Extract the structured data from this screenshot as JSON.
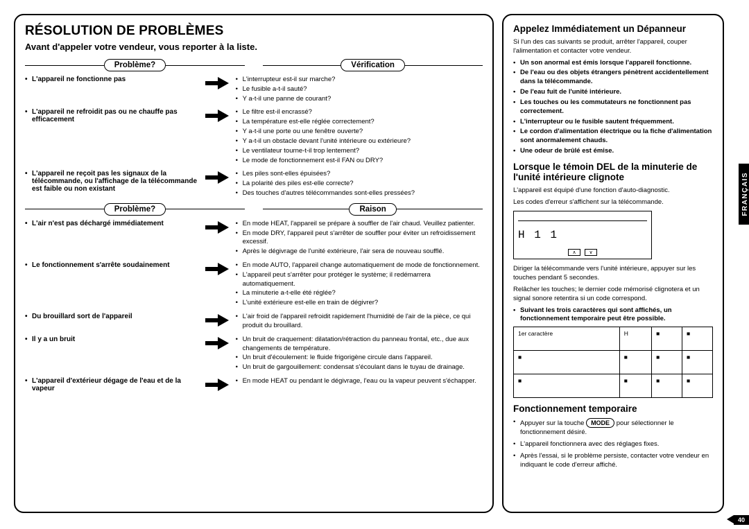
{
  "page": {
    "number": "40",
    "language_tab": "FRANÇAIS"
  },
  "main": {
    "title": "RÉSOLUTION DE PROBLÈMES",
    "subtitle": "Avant d'appeler votre vendeur, vous reporter à la liste.",
    "header1_left": "Problème?",
    "header1_right": "Vérification",
    "section1": [
      {
        "problem": "L'appareil ne fonctionne pas",
        "checks": [
          "L'interrupteur est-il sur marche?",
          "Le fusible a-t-il sauté?",
          "Y a-t-il une panne de courant?"
        ]
      },
      {
        "problem": "L'appareil ne refroidit pas ou ne chauffe pas efficacement",
        "checks": [
          "Le filtre est-il encrassé?",
          "La température est-elle réglée correctement?",
          "Y a-t-il une porte ou une fenêtre ouverte?",
          "Y a-t-il un obstacle devant l'unité intérieure ou extérieure?",
          "Le ventilateur tourne-t-il trop lentement?",
          "Le mode de fonctionnement est-il FAN ou DRY?"
        ]
      },
      {
        "problem": "L'appareil ne reçoit pas les signaux de la télécommande, ou l'affichage de la télécommande est faible ou non existant",
        "checks": [
          "Les piles sont-elles épuisées?",
          "La polarité des piles est-elle correcte?",
          "Des touches d'autres télécommandes sont-elles pressées?"
        ]
      }
    ],
    "header2_left": "Problème?",
    "header2_right": "Raison",
    "section2": [
      {
        "problem": "L'air n'est pas déchargé immédiatement",
        "checks": [
          "En mode HEAT, l'appareil se prépare à souffler de l'air chaud. Veuillez patienter.",
          "En mode DRY, l'appareil peut s'arrêter de souffler pour éviter un refroidissement excessif.",
          "Après le dégivrage de l'unité extérieure, l'air sera de nouveau soufflé."
        ]
      },
      {
        "problem": "Le fonctionnement s'arrête soudainement",
        "checks": [
          "En mode AUTO, l'appareil change automatiquement de mode de fonctionnement.",
          "L'appareil peut s'arrêter pour protéger le système; il redémarrera automatiquement.",
          "La minuterie a-t-elle été réglée?",
          "L'unité extérieure est-elle en train de dégivrer?"
        ]
      },
      {
        "problem": "Du brouillard sort de l'appareil",
        "checks": [
          "L'air froid de l'appareil refroidit rapidement l'humidité de l'air de la pièce, ce qui produit du brouillard."
        ]
      },
      {
        "problem": "Il y a un bruit",
        "checks": [
          "Un bruit de craquement: dilatation/rétraction du panneau frontal, etc., due aux changements de température.",
          "Un bruit d'écoulement: le fluide frigorigène circule dans l'appareil.",
          "Un bruit de gargouillement: condensat s'écoulant dans le tuyau de drainage."
        ]
      },
      {
        "problem": "L'appareil d'extérieur dégage de l'eau et de la vapeur",
        "checks": [
          "En mode HEAT ou pendant le dégivrage, l'eau ou la vapeur peuvent s'échapper."
        ]
      }
    ]
  },
  "side": {
    "title1": "Appelez Immédiatement un Dépanneur",
    "intro1": "Si l'un des cas suivants se produit, arrêter l'appareil, couper l'alimentation et contacter votre vendeur.",
    "bullets1": [
      "Un son anormal est émis lorsque l'appareil fonctionne.",
      "De l'eau ou des objets étrangers pénètrent accidentellement dans la télécommande.",
      "De l'eau fuit de l'unité intérieure.",
      "Les touches ou les commutateurs ne fonctionnent pas correctement.",
      "L'interrupteur ou le fusible sautent fréquemment.",
      "Le cordon d'alimentation électrique ou la fiche d'alimentation sont anormalement chauds.",
      "Une odeur de brûlé est émise."
    ],
    "title2": "Lorsque le témoin DEL de la minuterie de l'unité intérieure clignote",
    "para2a": "L'appareil est équipé d'une fonction d'auto-diagnostic.",
    "para2b": "Les codes d'erreur s'affichent sur la télécommande.",
    "display_code": "H 1 1",
    "para2c": "Diriger la télécommande vers l'unité intérieure, appuyer sur les touches pendant 5 secondes.",
    "para2d": "Relâcher les touches; le dernier code mémorisé clignotera et un signal sonore retentira si un code correspond.",
    "note": "Suivant les trois caractères qui sont affichés, un fonctionnement temporaire peut être possible.",
    "table": [
      [
        "1er caractère",
        "H",
        "■",
        "■"
      ],
      [
        "■",
        "■",
        "■",
        "■"
      ],
      [
        "■",
        "■",
        "■",
        "■"
      ]
    ],
    "title3": "Fonctionnement temporaire",
    "temp_steps": [
      "Appuyer sur la touche MODE pour sélectionner le fonctionnement désiré.",
      "L'appareil fonctionnera avec des réglages fixes.",
      "Après l'essai, si le problème persiste, contacter votre vendeur en indiquant le code d'erreur affiché."
    ],
    "mode_label": "MODE"
  }
}
